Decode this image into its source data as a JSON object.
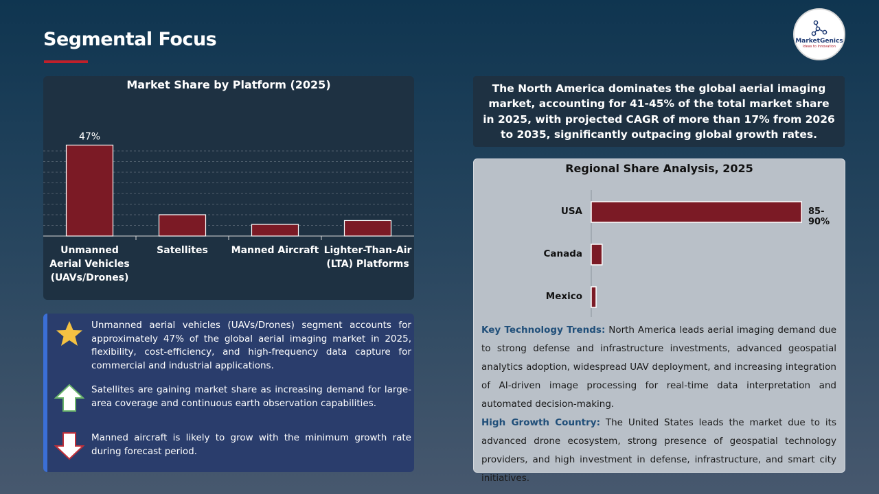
{
  "page": {
    "title": "Segmental Focus"
  },
  "logo": {
    "name": "MarketGenics",
    "tagline": "Ideas to Innovation"
  },
  "chart_data": [
    {
      "type": "bar",
      "title": "Market Share by Platform (2025)",
      "categories": [
        "Unmanned Aerial Vehicles (UAVs/Drones)",
        "Satellites",
        "Manned Aircraft",
        "Lighter-Than-Air (LTA) Platforms"
      ],
      "values": [
        47,
        11,
        6,
        8
      ],
      "data_labels": [
        "47%",
        "",
        "",
        ""
      ],
      "ylim": [
        0,
        50
      ],
      "grid": true,
      "colors": {
        "bar": "#7b1a25",
        "bar_border": "#ffffff"
      }
    },
    {
      "type": "bar",
      "orientation": "horizontal",
      "title": "Regional Share Analysis, 2025",
      "categories": [
        "USA",
        "Canada",
        "Mexico"
      ],
      "values": [
        87.5,
        4.5,
        2
      ],
      "data_labels": [
        "85-90%",
        "",
        ""
      ],
      "xlim": [
        0,
        100
      ],
      "colors": {
        "bar": "#7b1a25",
        "bar_border": "#ffffff"
      }
    }
  ],
  "insights": [
    {
      "icon": "star-icon",
      "text": "Unmanned aerial vehicles (UAVs/Drones) segment accounts for approximately 47% of the global aerial imaging market in 2025, flexibility, cost-efficiency, and high-frequency data capture for commercial and industrial applications."
    },
    {
      "icon": "arrow-up-icon",
      "text": "Satellites are gaining market share as increasing demand for large-area coverage and continuous earth observation capabilities."
    },
    {
      "icon": "arrow-down-icon",
      "text": "Manned aircraft is likely to grow with the minimum growth rate during forecast period."
    }
  ],
  "summary": "The North America dominates the global aerial imaging market, accounting for 41-45% of the total market share in 2025, with projected CAGR of more than 17% from 2026 to 2035, significantly outpacing global growth rates.",
  "region_notes": {
    "trends_label": "Key Technology Trends:",
    "trends_text": " North America leads aerial imaging demand due to strong defense and infrastructure investments, advanced geospatial analytics adoption, widespread UAV deployment, and increasing integration of AI-driven image processing for real-time data interpretation and automated decision-making.",
    "growth_label": "High Growth Country:",
    "growth_text": " The United States leads the market due to its advanced drone ecosystem, strong presence of geospatial technology providers, and high investment in defense, infrastructure, and smart city initiatives."
  }
}
